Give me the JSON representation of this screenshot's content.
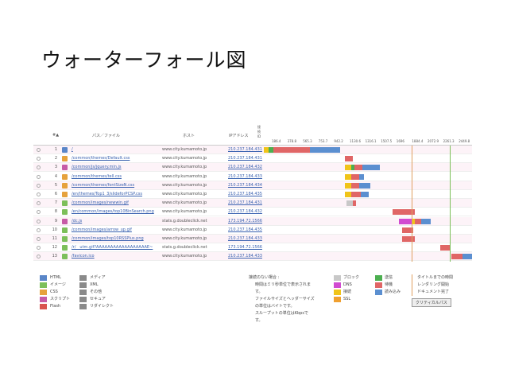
{
  "slide_title": "ウォーターフォール図",
  "headers": {
    "index": "#▲",
    "path": "パス／ファイル",
    "host": "ホスト",
    "ip": "IPアドレス",
    "conn": "接\n続\nID"
  },
  "wf_ticks": [
    "186.4",
    "378.8",
    "565.3",
    "753.7",
    "942.2",
    "1130.6",
    "1316.1",
    "1507.5",
    "1696",
    "1884.4",
    "2072.9",
    "2261.3",
    "2449.8"
  ],
  "rows": [
    {
      "n": "1",
      "file": "/",
      "host": "www.city.kumamoto.jp",
      "ip": "210.237.184.431",
      "color": "#5a86c8"
    },
    {
      "n": "2",
      "file": "/common/themes/Default.css",
      "host": "www.city.kumamoto.jp",
      "ip": "210.237.184.431",
      "color": "#e6a23c"
    },
    {
      "n": "3",
      "file": "/common/js/jquery.min.js",
      "host": "www.city.kumamoto.jp",
      "ip": "210.237.184.432",
      "color": "#c65ba6"
    },
    {
      "n": "4",
      "file": "/common/themes/tell.css",
      "host": "www.city.kumamoto.jp",
      "ip": "210.237.184.433",
      "color": "#e6a23c"
    },
    {
      "n": "5",
      "file": "/common/themes/fontSizeN.css",
      "host": "www.city.kumamoto.jp",
      "ip": "210.237.184.434",
      "color": "#e6a23c"
    },
    {
      "n": "6",
      "file": "/en/themes/Top1_3/slideforPCSP.css",
      "host": "www.city.kumamoto.jp",
      "ip": "210.237.184.435",
      "color": "#e6a23c"
    },
    {
      "n": "7",
      "file": "/common/images/newwin.gif",
      "host": "www.city.kumamoto.jp",
      "ip": "210.237.184.431",
      "color": "#7cbf5a"
    },
    {
      "n": "8",
      "file": "/en/common/images/top10BinSearch.png",
      "host": "www.city.kumamoto.jp",
      "ip": "210.237.184.432",
      "color": "#7cbf5a"
    },
    {
      "n": "9",
      "file": "/dc.js",
      "host": "stats.g.doubleclick.net",
      "ip": "173.194.72.1566",
      "color": "#c65ba6"
    },
    {
      "n": "10",
      "file": "/common/images/arrow_up.gif",
      "host": "www.city.kumamoto.jp",
      "ip": "210.237.184.435",
      "color": "#7cbf5a"
    },
    {
      "n": "11",
      "file": "/common/images/top10RSSPlus.png",
      "host": "www.city.kumamoto.jp",
      "ip": "210.237.184.433",
      "color": "#7cbf5a"
    },
    {
      "n": "12",
      "file": "/r/__utm.gif?AAAAAAAAAAAAAAAAAAE~",
      "host": "stats.g.doubleclick.net",
      "ip": "173.194.72.1566",
      "color": "#7cbf5a"
    },
    {
      "n": "13",
      "file": "/favicon.ico",
      "host": "www.city.kumamoto.jp",
      "ip": "210.237.184.433",
      "color": "#7cbf5a"
    }
  ],
  "legend_col1": [
    {
      "label": "HTML",
      "color": "#5a86c8"
    },
    {
      "label": "イメージ",
      "color": "#7cbf5a"
    },
    {
      "label": "CSS",
      "color": "#e6a23c"
    },
    {
      "label": "スクリプト",
      "color": "#c65ba6"
    },
    {
      "label": "Flash",
      "color": "#d9534f"
    }
  ],
  "legend_col2": [
    {
      "label": "メディア",
      "color": "#8a8a8a"
    },
    {
      "label": "XML",
      "color": "#8a8a8a"
    },
    {
      "label": "その他",
      "color": "#8a8a8a"
    },
    {
      "label": "セキュア",
      "color": "#8a8a8a"
    },
    {
      "label": "リダイレクト",
      "color": "#8a8a8a"
    }
  ],
  "note_lines": [
    "接続のない場合 :",
    "時間はミリ秒単位で表示されま",
    "す。",
    "ファイルサイズとヘッダーサイズ",
    "の単位はバイトです。",
    "スループットの単位はKbpsで",
    "す。"
  ],
  "timing_col1": [
    {
      "label": "ブロック",
      "color": "#c8c8c8"
    },
    {
      "label": "DNS",
      "color": "#d14bd1"
    },
    {
      "label": "接続",
      "color": "#f0c419"
    },
    {
      "label": "SSL",
      "color": "#f0a030"
    }
  ],
  "timing_col2": [
    {
      "label": "送信",
      "color": "#4caf50"
    },
    {
      "label": "待機",
      "color": "#e06666"
    },
    {
      "label": "読み込み",
      "color": "#5b8fd0"
    }
  ],
  "timing_col3": [
    "タイトルまでの時間",
    "レンダリング開始",
    "ドキュメント完了"
  ],
  "critical_path": "クリティカルパス"
}
